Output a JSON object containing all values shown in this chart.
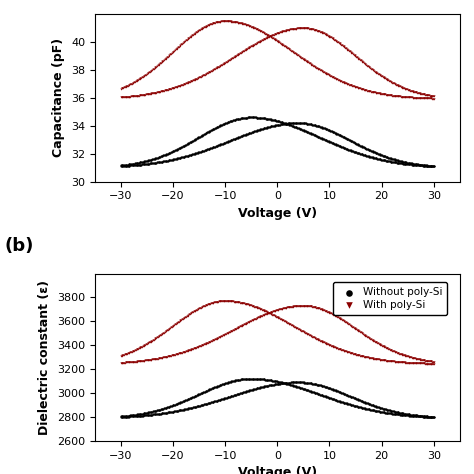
{
  "panel_a": {
    "xlabel": "Voltage (V)",
    "ylabel": "Capacitance (pF)",
    "xlim": [
      -35,
      35
    ],
    "ylim": [
      30,
      42
    ],
    "yticks": [
      30,
      32,
      34,
      36,
      38,
      40
    ],
    "xticks": [
      -30,
      -20,
      -10,
      0,
      10,
      20,
      30
    ],
    "black_baseline": 31.0,
    "black_peak_fwd": 34.6,
    "black_peak_bwd": 34.2,
    "black_peak_x_fwd": -5,
    "black_peak_x_bwd": 4,
    "black_start_x": -30,
    "black_end_x": 30,
    "red_baseline": 35.9,
    "red_peak_fwd": 41.5,
    "red_peak_bwd": 41.0,
    "red_peak_x_fwd": -10,
    "red_peak_x_bwd": 5,
    "red_start_x": -30,
    "red_end_x": 30
  },
  "panel_b": {
    "xlabel": "Voltage (V)",
    "ylabel": "Dielectric constant (ε)",
    "xlim": [
      -35,
      35
    ],
    "ylim": [
      2600,
      4000
    ],
    "yticks": [
      2600,
      2800,
      3000,
      3200,
      3400,
      3600,
      3800
    ],
    "xticks": [
      -30,
      -20,
      -10,
      0,
      10,
      20,
      30
    ],
    "black_baseline": 2790,
    "black_peak_fwd": 3120,
    "black_peak_bwd": 3090,
    "black_peak_x_fwd": -5,
    "black_peak_x_bwd": 4,
    "black_start_x": -30,
    "black_end_x": 30,
    "red_baseline": 3240,
    "red_peak_fwd": 3770,
    "red_peak_bwd": 3730,
    "red_peak_x_fwd": -10,
    "red_peak_x_bwd": 5,
    "red_start_x": -30,
    "red_end_x": 30,
    "legend_labels": [
      "Without poly-Si",
      "With poly-Si"
    ]
  },
  "label_b": "(b)",
  "dot_size": 2.5,
  "black_color": "#000000",
  "red_color": "#8B0000"
}
